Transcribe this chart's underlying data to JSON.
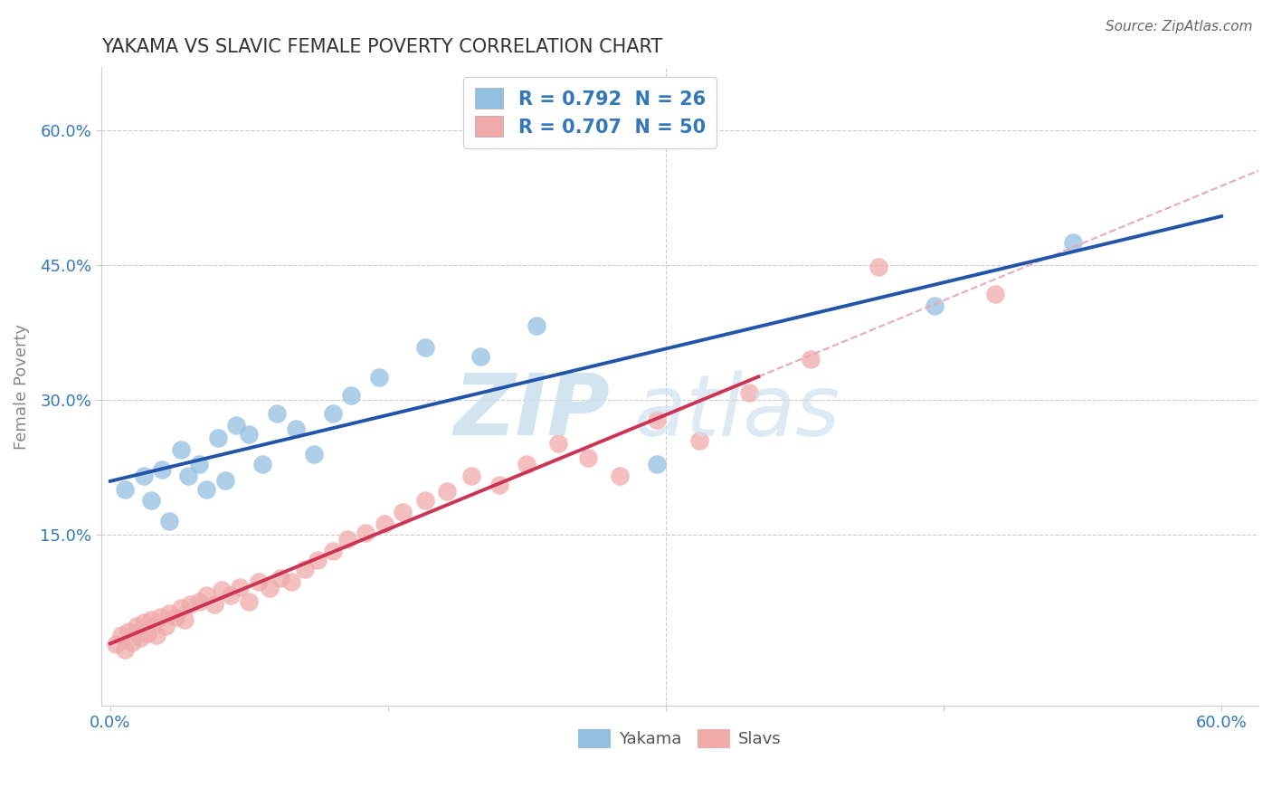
{
  "title": "YAKAMA VS SLAVIC FEMALE POVERTY CORRELATION CHART",
  "source": "Source: ZipAtlas.com",
  "ylabel_label": "Female Poverty",
  "xlim": [
    -0.005,
    0.62
  ],
  "ylim": [
    -0.04,
    0.67
  ],
  "xtick_vals": [
    0.0,
    0.15,
    0.3,
    0.45,
    0.6
  ],
  "xtick_labels": [
    "0.0%",
    "",
    "",
    "",
    "60.0%"
  ],
  "ytick_vals": [
    0.15,
    0.3,
    0.45,
    0.6
  ],
  "ytick_labels": [
    "15.0%",
    "30.0%",
    "45.0%",
    "60.0%"
  ],
  "yakama_R": "0.792",
  "yakama_N": "26",
  "slavic_R": "0.707",
  "slavic_N": "50",
  "yakama_color": "#93bfe0",
  "slavic_color": "#f0aaaa",
  "yakama_line_color": "#2255aa",
  "slavic_line_color": "#cc3355",
  "dashed_color": "#e8aabb",
  "bg_color": "#ffffff",
  "grid_color": "#cccccc",
  "title_color": "#333333",
  "axis_color": "#888888",
  "tick_color": "#3377bb",
  "legend_color": "#3377bb",
  "source_color": "#666666",
  "watermark_color": "#cce4f5",
  "yakama_x": [
    0.008,
    0.018,
    0.022,
    0.028,
    0.032,
    0.038,
    0.042,
    0.048,
    0.052,
    0.058,
    0.062,
    0.068,
    0.075,
    0.082,
    0.09,
    0.1,
    0.11,
    0.12,
    0.13,
    0.145,
    0.17,
    0.2,
    0.23,
    0.295,
    0.445,
    0.52
  ],
  "yakama_y": [
    0.2,
    0.215,
    0.188,
    0.222,
    0.165,
    0.245,
    0.215,
    0.228,
    0.2,
    0.258,
    0.21,
    0.272,
    0.262,
    0.228,
    0.285,
    0.268,
    0.24,
    0.285,
    0.305,
    0.325,
    0.358,
    0.348,
    0.382,
    0.228,
    0.405,
    0.475
  ],
  "slavic_x": [
    0.003,
    0.006,
    0.008,
    0.01,
    0.012,
    0.014,
    0.016,
    0.018,
    0.02,
    0.022,
    0.025,
    0.027,
    0.03,
    0.032,
    0.035,
    0.038,
    0.04,
    0.043,
    0.048,
    0.052,
    0.056,
    0.06,
    0.065,
    0.07,
    0.075,
    0.08,
    0.086,
    0.092,
    0.098,
    0.105,
    0.112,
    0.12,
    0.128,
    0.138,
    0.148,
    0.158,
    0.17,
    0.182,
    0.195,
    0.21,
    0.225,
    0.242,
    0.258,
    0.275,
    0.295,
    0.318,
    0.345,
    0.378,
    0.415,
    0.478
  ],
  "slavic_y": [
    0.028,
    0.038,
    0.022,
    0.042,
    0.03,
    0.048,
    0.035,
    0.052,
    0.04,
    0.055,
    0.038,
    0.058,
    0.048,
    0.062,
    0.058,
    0.068,
    0.055,
    0.072,
    0.075,
    0.082,
    0.072,
    0.088,
    0.082,
    0.092,
    0.075,
    0.098,
    0.09,
    0.102,
    0.098,
    0.112,
    0.122,
    0.132,
    0.145,
    0.152,
    0.162,
    0.175,
    0.188,
    0.198,
    0.215,
    0.205,
    0.228,
    0.252,
    0.235,
    0.215,
    0.278,
    0.255,
    0.308,
    0.345,
    0.448,
    0.418
  ]
}
